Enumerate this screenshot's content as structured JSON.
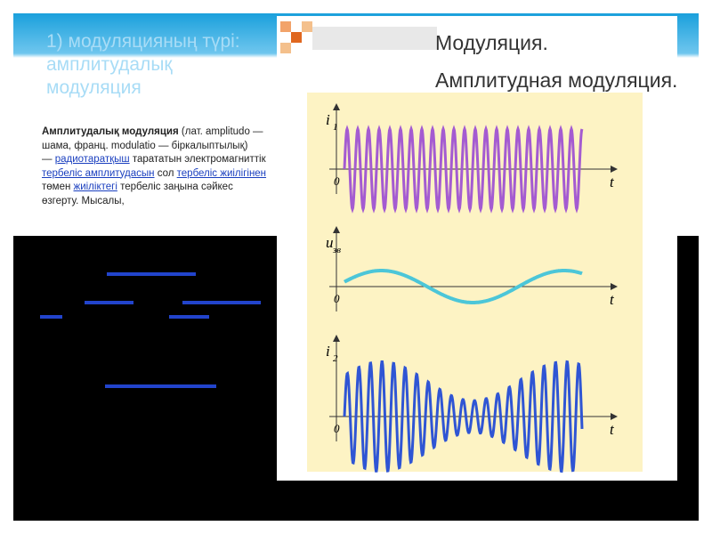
{
  "header": {
    "title": "1) модуляцияның түрі: амплитудалық модуляция"
  },
  "paragraph": [
    "Амплитудалық модуляция",
    " (лат. amplitudo — шама, франц. modulatio — біркалыптылық)",
    "— ",
    "радиотаратқыш",
    " тарататын электромагниттік ",
    "тербеліс амплитудасын",
    " сол ",
    "тербеліс жиілігінен",
    " төмен ",
    "жиіліктегі",
    " тербеліс заңына сәйкес өзгерту. Мысалы,"
  ],
  "image": {
    "title": [
      "Модуляция.",
      "Амплитудная модуляция."
    ],
    "axes": [
      {
        "name": "i",
        "sub": "1",
        "x": "t",
        "origin": "0"
      },
      {
        "name": "u",
        "sub": "зв",
        "x": "t",
        "origin": "0"
      },
      {
        "name": "i",
        "sub": "2",
        "x": "t",
        "origin": "0"
      }
    ]
  }
}
